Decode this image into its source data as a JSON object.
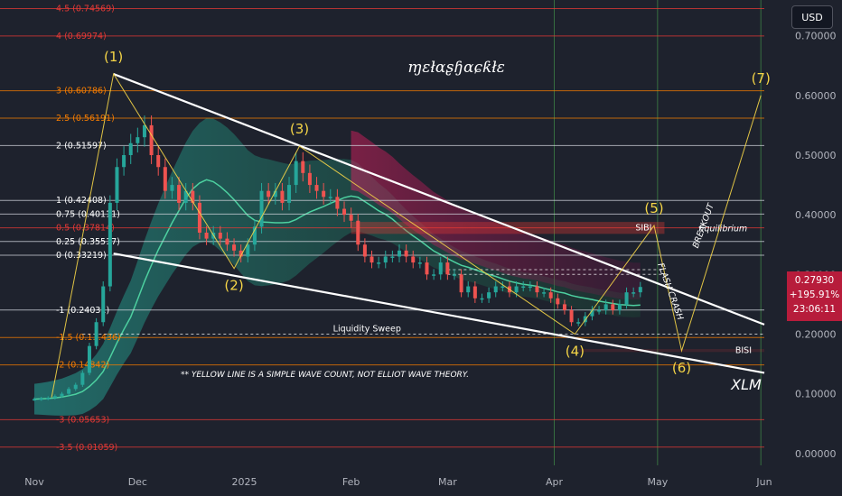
{
  "currency_button": "USD",
  "price_badge": {
    "price": "0.27930",
    "change": "+195.91%",
    "countdown": "23:06:11"
  },
  "watermark": "ɱɛłɑʂɧɑɕƙłɛ",
  "symbol": "XLM",
  "annotation": "** YELLOW LINE IS A SIMPLE WAVE COUNT, NOT ELLIOT WAVE THEORY.",
  "colors": {
    "background": "#1e222d",
    "wave": "#f5d547",
    "trend": "#ffffff",
    "bull": "#26a69a",
    "bear": "#ef5350"
  },
  "chart_data": {
    "type": "line",
    "y_axis": {
      "range": [
        -0.02,
        0.76
      ],
      "position": "right",
      "ticks": [
        "0.70000",
        "0.60000",
        "0.50000",
        "0.40000",
        "0.30000",
        "0.20000",
        "0.10000",
        "0.00000"
      ],
      "tick_values": [
        0.7,
        0.6,
        0.5,
        0.4,
        0.3,
        0.2,
        0.1,
        0.0
      ]
    },
    "x_axis": {
      "range": [
        "2024-11-01",
        "2025-06-01"
      ],
      "ticks": [
        {
          "label": "Nov",
          "date": "2024-11-01"
        },
        {
          "label": "Dec",
          "date": "2024-12-01"
        },
        {
          "label": "2025",
          "date": "2025-01-01"
        },
        {
          "label": "Feb",
          "date": "2025-02-01"
        },
        {
          "label": "Mar",
          "date": "2025-03-01"
        },
        {
          "label": "Apr",
          "date": "2025-04-01"
        },
        {
          "label": "May",
          "date": "2025-05-01"
        },
        {
          "label": "Jun",
          "date": "2025-06-01"
        }
      ]
    },
    "fib_levels": [
      {
        "label": "4.5 (0.74569)",
        "value": 0.74569,
        "color": "#e53935"
      },
      {
        "label": "4 (0.69974)",
        "value": 0.69974,
        "color": "#e53935"
      },
      {
        "label": "3 (0.60786)",
        "value": 0.60786,
        "color": "#f57c00"
      },
      {
        "label": "2.5 (0.56191)",
        "value": 0.56191,
        "color": "#f57c00"
      },
      {
        "label": "2 (0.51597)",
        "value": 0.51597,
        "color": "#d1d4dc"
      },
      {
        "label": "1 (0.42408)",
        "value": 0.42408,
        "color": "#d1d4dc"
      },
      {
        "label": "0.75 (0.40111)",
        "value": 0.40111,
        "color": "#d1d4dc"
      },
      {
        "label": "0.5 (0.37814)",
        "value": 0.37814,
        "color": "#e53935"
      },
      {
        "label": "0.25 (0.35517)",
        "value": 0.35517,
        "color": "#d1d4dc"
      },
      {
        "label": "0 (0.33219)",
        "value": 0.33219,
        "color": "#d1d4dc"
      },
      {
        "label": "-1 (0.24031)",
        "value": 0.24031,
        "color": "#d1d4dc"
      },
      {
        "label": "-1.5 (0.1…436)",
        "value": 0.19436,
        "color": "#f57c00"
      },
      {
        "label": "-2 (0.14842)",
        "value": 0.14842,
        "color": "#f57c00"
      },
      {
        "label": "-3 (0.05653)",
        "value": 0.05653,
        "color": "#e53935"
      },
      {
        "label": "-3.5 (0.01059)",
        "value": 0.01059,
        "color": "#e53935"
      }
    ],
    "wave_count": [
      {
        "label": "(1)",
        "date": "2024-11-24",
        "value": 0.636,
        "label_pos": "above"
      },
      {
        "label": "(2)",
        "date": "2024-12-29",
        "value": 0.31,
        "label_pos": "below"
      },
      {
        "label": "(3)",
        "date": "2025-01-17",
        "value": 0.515,
        "label_pos": "above"
      },
      {
        "label": "(4)",
        "date": "2025-04-07",
        "value": 0.2,
        "label_pos": "below"
      },
      {
        "label": "(5)",
        "date": "2025-04-30",
        "value": 0.382,
        "label_pos": "above"
      },
      {
        "label": "(6)",
        "date": "2025-05-08",
        "value": 0.172,
        "label_pos": "below"
      },
      {
        "label": "(7)",
        "date": "2025-05-31",
        "value": 0.6,
        "label_pos": "above"
      }
    ],
    "wave_path_start": {
      "date": "2024-11-06",
      "value": 0.094
    },
    "trendlines": [
      {
        "name": "upper",
        "from": {
          "date": "2024-11-24",
          "value": 0.636
        },
        "to": {
          "date": "2025-06-01",
          "value": 0.216
        }
      },
      {
        "name": "lower",
        "from": {
          "date": "2024-11-24",
          "value": 0.335
        },
        "to": {
          "date": "2025-06-01",
          "value": 0.135
        }
      }
    ],
    "zones": [
      {
        "label": "SIBI",
        "from": "2025-02-01",
        "to": "2025-05-03",
        "low": 0.368,
        "high": 0.388
      },
      {
        "label": "BISI",
        "from": "2025-04-08",
        "to": "2025-06-01",
        "low": 0.17,
        "high": 0.175
      }
    ],
    "dashed_levels": [
      {
        "label": "Liquidity Sweep",
        "value": 0.2,
        "from": "2024-11-15",
        "to": "2025-06-01"
      },
      {
        "value": 0.308,
        "from": "2025-03-01",
        "to": "2025-05-03"
      },
      {
        "value": 0.3,
        "from": "2025-03-01",
        "to": "2025-05-03"
      }
    ],
    "text_labels": [
      {
        "text": "Equilibrium",
        "date": "2025-05-20",
        "value": 0.372
      },
      {
        "text": "BREAKOUT",
        "date": "2025-05-15",
        "value": 0.38
      },
      {
        "text": "FLASH CRASH",
        "date": "2025-05-04",
        "value": 0.27
      }
    ],
    "vertical_markers": [
      "2025-04-01",
      "2025-05-01",
      "2025-05-31"
    ],
    "price_series": [
      [
        "2024-11-01",
        0.091
      ],
      [
        "2024-11-03",
        0.092
      ],
      [
        "2024-11-05",
        0.093
      ],
      [
        "2024-11-07",
        0.096
      ],
      [
        "2024-11-09",
        0.1
      ],
      [
        "2024-11-11",
        0.108
      ],
      [
        "2024-11-13",
        0.115
      ],
      [
        "2024-11-15",
        0.135
      ],
      [
        "2024-11-17",
        0.18
      ],
      [
        "2024-11-19",
        0.22
      ],
      [
        "2024-11-21",
        0.28
      ],
      [
        "2024-11-23",
        0.42
      ],
      [
        "2024-11-25",
        0.48
      ],
      [
        "2024-11-27",
        0.5
      ],
      [
        "2024-11-29",
        0.52
      ],
      [
        "2024-12-01",
        0.53
      ],
      [
        "2024-12-03",
        0.55
      ],
      [
        "2024-12-05",
        0.5
      ],
      [
        "2024-12-07",
        0.48
      ],
      [
        "2024-12-09",
        0.44
      ],
      [
        "2024-12-11",
        0.45
      ],
      [
        "2024-12-13",
        0.42
      ],
      [
        "2024-12-15",
        0.44
      ],
      [
        "2024-12-17",
        0.42
      ],
      [
        "2024-12-19",
        0.37
      ],
      [
        "2024-12-21",
        0.36
      ],
      [
        "2024-12-23",
        0.37
      ],
      [
        "2024-12-25",
        0.36
      ],
      [
        "2024-12-27",
        0.35
      ],
      [
        "2024-12-29",
        0.34
      ],
      [
        "2024-12-31",
        0.33
      ],
      [
        "2025-01-02",
        0.35
      ],
      [
        "2025-01-04",
        0.38
      ],
      [
        "2025-01-06",
        0.44
      ],
      [
        "2025-01-08",
        0.43
      ],
      [
        "2025-01-10",
        0.44
      ],
      [
        "2025-01-12",
        0.42
      ],
      [
        "2025-01-14",
        0.45
      ],
      [
        "2025-01-16",
        0.49
      ],
      [
        "2025-01-18",
        0.47
      ],
      [
        "2025-01-20",
        0.45
      ],
      [
        "2025-01-22",
        0.44
      ],
      [
        "2025-01-24",
        0.43
      ],
      [
        "2025-01-26",
        0.43
      ],
      [
        "2025-01-28",
        0.41
      ],
      [
        "2025-01-30",
        0.4
      ],
      [
        "2025-02-01",
        0.39
      ],
      [
        "2025-02-03",
        0.35
      ],
      [
        "2025-02-05",
        0.33
      ],
      [
        "2025-02-07",
        0.32
      ],
      [
        "2025-02-09",
        0.32
      ],
      [
        "2025-02-11",
        0.33
      ],
      [
        "2025-02-13",
        0.33
      ],
      [
        "2025-02-15",
        0.34
      ],
      [
        "2025-02-17",
        0.33
      ],
      [
        "2025-02-19",
        0.32
      ],
      [
        "2025-02-21",
        0.32
      ],
      [
        "2025-02-23",
        0.3
      ],
      [
        "2025-02-25",
        0.3
      ],
      [
        "2025-02-27",
        0.32
      ],
      [
        "2025-03-01",
        0.3
      ],
      [
        "2025-03-03",
        0.3
      ],
      [
        "2025-03-05",
        0.27
      ],
      [
        "2025-03-07",
        0.28
      ],
      [
        "2025-03-09",
        0.26
      ],
      [
        "2025-03-11",
        0.26
      ],
      [
        "2025-03-13",
        0.27
      ],
      [
        "2025-03-15",
        0.28
      ],
      [
        "2025-03-17",
        0.28
      ],
      [
        "2025-03-19",
        0.27
      ],
      [
        "2025-03-21",
        0.28
      ],
      [
        "2025-03-23",
        0.28
      ],
      [
        "2025-03-25",
        0.28
      ],
      [
        "2025-03-27",
        0.27
      ],
      [
        "2025-03-29",
        0.27
      ],
      [
        "2025-03-31",
        0.26
      ],
      [
        "2025-04-02",
        0.25
      ],
      [
        "2025-04-04",
        0.24
      ],
      [
        "2025-04-06",
        0.22
      ],
      [
        "2025-04-08",
        0.22
      ],
      [
        "2025-04-10",
        0.23
      ],
      [
        "2025-04-12",
        0.24
      ],
      [
        "2025-04-14",
        0.24
      ],
      [
        "2025-04-16",
        0.25
      ],
      [
        "2025-04-18",
        0.24
      ],
      [
        "2025-04-20",
        0.25
      ],
      [
        "2025-04-22",
        0.27
      ],
      [
        "2025-04-24",
        0.27
      ],
      [
        "2025-04-26",
        0.279
      ]
    ]
  }
}
